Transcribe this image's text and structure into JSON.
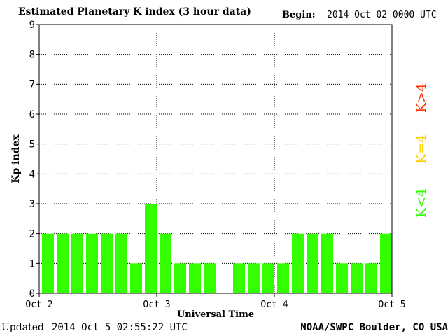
{
  "header": {
    "title": "Estimated Planetary K index (3 hour data)",
    "begin_label": "Begin:",
    "begin_value": "2014 Oct 02 0000 UTC"
  },
  "footer": {
    "updated_label": "Updated",
    "updated_value": "2014 Oct  5 02:55:22 UTC",
    "credit": "NOAA/SWPC Boulder, CO USA"
  },
  "legend": [
    {
      "label": "K>4",
      "color": "#ff3300"
    },
    {
      "label": "K=4",
      "color": "#ffcc00"
    },
    {
      "label": "K<4",
      "color": "#33ff00"
    }
  ],
  "chart_data": {
    "type": "bar",
    "title": "Estimated Planetary K index (3 hour data)",
    "xlabel": "Universal Time",
    "ylabel": "Kp index",
    "ylim": [
      0,
      9
    ],
    "yticks": [
      0,
      1,
      2,
      3,
      4,
      5,
      6,
      7,
      8,
      9
    ],
    "xticks": [
      "Oct 2",
      "Oct 3",
      "Oct 4",
      "Oct 5"
    ],
    "grid": true,
    "bar_color": "#33ff00",
    "values": [
      2,
      2,
      2,
      2,
      2,
      2,
      1,
      3,
      2,
      1,
      1,
      1,
      0,
      1,
      1,
      1,
      1,
      2,
      2,
      2,
      1,
      1,
      1,
      2
    ]
  }
}
